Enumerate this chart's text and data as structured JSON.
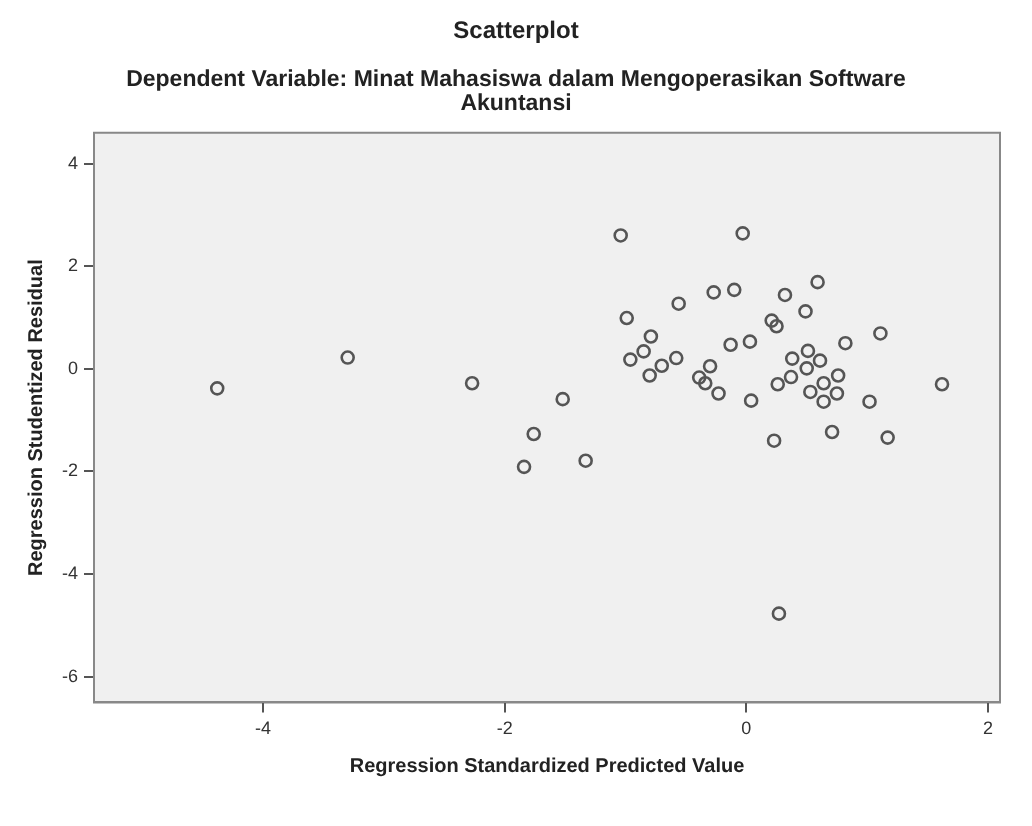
{
  "chart_data": {
    "type": "scatter",
    "title": "Scatterplot",
    "subtitle": "Dependent Variable: Minat Mahasiswa dalam Mengoperasikan Software Akuntansi",
    "xlabel": "Regression Standardized Predicted Value",
    "ylabel": "Regression Studentized Residual",
    "x": [
      -4.38,
      -3.3,
      -2.27,
      -1.84,
      -1.04,
      -0.03,
      0.59,
      -0.56,
      -0.27,
      -0.1,
      0.32,
      0.49,
      -0.99,
      0.21,
      0.25,
      -0.79,
      1.11,
      -0.85,
      -0.96,
      -0.13,
      0.03,
      0.82,
      -0.58,
      -0.7,
      -0.8,
      -0.3,
      -0.39,
      -0.34,
      -0.23,
      0.04,
      0.51,
      0.38,
      0.61,
      0.5,
      0.37,
      0.26,
      0.64,
      0.76,
      0.53,
      0.75,
      0.64,
      1.02,
      1.62,
      -1.52,
      0.23,
      0.71,
      1.17,
      -1.76,
      -1.33,
      0.27
    ],
    "values": [
      -0.38,
      0.22,
      -0.28,
      -1.91,
      2.6,
      2.64,
      1.69,
      1.27,
      1.49,
      1.54,
      1.44,
      1.12,
      0.99,
      0.94,
      0.83,
      0.63,
      0.69,
      0.34,
      0.18,
      0.47,
      0.53,
      0.5,
      0.21,
      0.06,
      -0.13,
      0.05,
      -0.17,
      -0.28,
      -0.48,
      -0.62,
      0.35,
      0.2,
      0.16,
      0.01,
      -0.16,
      -0.3,
      -0.28,
      -0.13,
      -0.45,
      -0.48,
      -0.64,
      -0.64,
      -0.3,
      -0.59,
      -1.4,
      -1.23,
      -1.34,
      -1.27,
      -1.79,
      -4.77
    ],
    "color": "#555555",
    "marker": "circle",
    "xlim": [
      -5.4,
      2.1
    ],
    "ylim": [
      -6.5,
      4.6
    ],
    "xticks": [
      -4,
      -2,
      0,
      2
    ],
    "yticks": [
      -6,
      -4,
      -2,
      0,
      2,
      4
    ],
    "grid": false,
    "legend": false
  }
}
